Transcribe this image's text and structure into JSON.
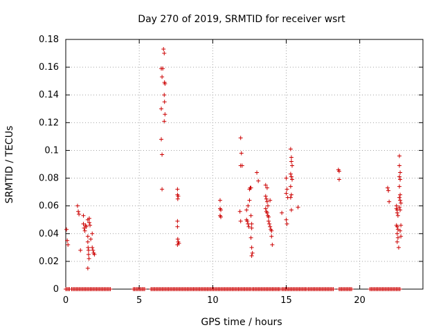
{
  "chart_data": {
    "type": "scatter",
    "title": "Day 270 of 2019, SRMTID for receiver wsrt",
    "xlabel": "GPS time / hours",
    "ylabel": "SRMTID / TECUs",
    "xlim": [
      0,
      24.3
    ],
    "ylim": [
      0,
      0.18
    ],
    "xticks": [
      0,
      5,
      10,
      15,
      20
    ],
    "xtick_labels": [
      "0",
      "5",
      "10",
      "15",
      "20"
    ],
    "yticks": [
      0,
      0.02,
      0.04,
      0.06,
      0.08,
      0.1,
      0.12,
      0.14,
      0.16,
      0.18
    ],
    "ytick_labels": [
      "0",
      "0.02",
      "0.04",
      "0.06",
      "0.08",
      "0.1",
      "0.12",
      "0.14",
      "0.16",
      "0.18"
    ],
    "grid": true,
    "marker": "+",
    "color": "#cc0000",
    "series": [
      {
        "name": "SRMTID",
        "points": [
          [
            0.05,
            0.043
          ],
          [
            0.1,
            0.035
          ],
          [
            0.15,
            0.032
          ],
          [
            0.8,
            0.06
          ],
          [
            0.85,
            0.056
          ],
          [
            0.9,
            0.054
          ],
          [
            1.0,
            0.028
          ],
          [
            1.2,
            0.053
          ],
          [
            1.2,
            0.047
          ],
          [
            1.25,
            0.044
          ],
          [
            1.3,
            0.042
          ],
          [
            1.35,
            0.046
          ],
          [
            1.4,
            0.045
          ],
          [
            1.5,
            0.05
          ],
          [
            1.5,
            0.038
          ],
          [
            1.5,
            0.034
          ],
          [
            1.52,
            0.03
          ],
          [
            1.55,
            0.028
          ],
          [
            1.55,
            0.025
          ],
          [
            1.58,
            0.022
          ],
          [
            1.5,
            0.015
          ],
          [
            1.6,
            0.048
          ],
          [
            1.6,
            0.051
          ],
          [
            1.65,
            0.046
          ],
          [
            1.7,
            0.036
          ],
          [
            1.8,
            0.04
          ],
          [
            1.8,
            0.03
          ],
          [
            1.85,
            0.028
          ],
          [
            1.9,
            0.026
          ],
          [
            1.95,
            0.025
          ],
          [
            6.5,
            0.159
          ],
          [
            6.55,
            0.153
          ],
          [
            6.6,
            0.159
          ],
          [
            6.65,
            0.173
          ],
          [
            6.7,
            0.17
          ],
          [
            6.72,
            0.149
          ],
          [
            6.75,
            0.148
          ],
          [
            6.5,
            0.13
          ],
          [
            6.7,
            0.14
          ],
          [
            6.72,
            0.135
          ],
          [
            6.75,
            0.126
          ],
          [
            6.7,
            0.121
          ],
          [
            6.5,
            0.108
          ],
          [
            6.55,
            0.097
          ],
          [
            6.55,
            0.072
          ],
          [
            7.6,
            0.072
          ],
          [
            7.6,
            0.068
          ],
          [
            7.65,
            0.067
          ],
          [
            7.62,
            0.065
          ],
          [
            7.6,
            0.049
          ],
          [
            7.6,
            0.045
          ],
          [
            7.62,
            0.036
          ],
          [
            7.65,
            0.034
          ],
          [
            7.7,
            0.033
          ],
          [
            7.6,
            0.032
          ],
          [
            10.5,
            0.064
          ],
          [
            10.5,
            0.058
          ],
          [
            10.55,
            0.057
          ],
          [
            10.5,
            0.053
          ],
          [
            10.55,
            0.052
          ],
          [
            11.9,
            0.109
          ],
          [
            11.95,
            0.098
          ],
          [
            11.9,
            0.089
          ],
          [
            12.0,
            0.089
          ],
          [
            11.85,
            0.056
          ],
          [
            11.9,
            0.049
          ],
          [
            12.3,
            0.057
          ],
          [
            12.4,
            0.06
          ],
          [
            12.3,
            0.05
          ],
          [
            12.35,
            0.049
          ],
          [
            12.4,
            0.047
          ],
          [
            12.45,
            0.045
          ],
          [
            12.5,
            0.072
          ],
          [
            12.55,
            0.073
          ],
          [
            12.6,
            0.073
          ],
          [
            12.5,
            0.064
          ],
          [
            12.6,
            0.053
          ],
          [
            12.65,
            0.047
          ],
          [
            12.65,
            0.044
          ],
          [
            12.6,
            0.037
          ],
          [
            12.65,
            0.03
          ],
          [
            12.7,
            0.026
          ],
          [
            12.65,
            0.024
          ],
          [
            13.0,
            0.084
          ],
          [
            13.1,
            0.078
          ],
          [
            13.6,
            0.075
          ],
          [
            13.7,
            0.073
          ],
          [
            13.6,
            0.067
          ],
          [
            13.65,
            0.065
          ],
          [
            13.7,
            0.063
          ],
          [
            13.75,
            0.06
          ],
          [
            13.6,
            0.058
          ],
          [
            13.65,
            0.056
          ],
          [
            13.7,
            0.055
          ],
          [
            13.75,
            0.053
          ],
          [
            13.8,
            0.052
          ],
          [
            13.8,
            0.049
          ],
          [
            13.85,
            0.047
          ],
          [
            13.9,
            0.045
          ],
          [
            13.95,
            0.043
          ],
          [
            14.0,
            0.042
          ],
          [
            13.9,
            0.064
          ],
          [
            14.0,
            0.038
          ],
          [
            14.05,
            0.032
          ],
          [
            14.7,
            0.055
          ],
          [
            15.0,
            0.08
          ],
          [
            15.05,
            0.072
          ],
          [
            15.0,
            0.069
          ],
          [
            15.1,
            0.066
          ],
          [
            15.0,
            0.05
          ],
          [
            15.05,
            0.047
          ],
          [
            15.3,
            0.101
          ],
          [
            15.35,
            0.095
          ],
          [
            15.35,
            0.092
          ],
          [
            15.4,
            0.089
          ],
          [
            15.3,
            0.083
          ],
          [
            15.35,
            0.081
          ],
          [
            15.4,
            0.079
          ],
          [
            15.3,
            0.074
          ],
          [
            15.35,
            0.068
          ],
          [
            15.3,
            0.066
          ],
          [
            15.35,
            0.057
          ],
          [
            15.8,
            0.059
          ],
          [
            18.55,
            0.086
          ],
          [
            18.6,
            0.085
          ],
          [
            18.6,
            0.079
          ],
          [
            21.9,
            0.073
          ],
          [
            21.95,
            0.071
          ],
          [
            22.0,
            0.063
          ],
          [
            22.5,
            0.06
          ],
          [
            22.5,
            0.058
          ],
          [
            22.55,
            0.057
          ],
          [
            22.55,
            0.055
          ],
          [
            22.6,
            0.053
          ],
          [
            22.5,
            0.046
          ],
          [
            22.55,
            0.045
          ],
          [
            22.6,
            0.043
          ],
          [
            22.55,
            0.04
          ],
          [
            22.6,
            0.037
          ],
          [
            22.55,
            0.034
          ],
          [
            22.65,
            0.03
          ],
          [
            22.7,
            0.096
          ],
          [
            22.7,
            0.089
          ],
          [
            22.75,
            0.084
          ],
          [
            22.7,
            0.081
          ],
          [
            22.75,
            0.079
          ],
          [
            22.7,
            0.074
          ],
          [
            22.75,
            0.068
          ],
          [
            22.7,
            0.066
          ],
          [
            22.75,
            0.064
          ],
          [
            22.8,
            0.062
          ],
          [
            22.7,
            0.059
          ],
          [
            22.75,
            0.057
          ],
          [
            22.8,
            0.046
          ],
          [
            22.75,
            0.042
          ],
          [
            22.8,
            0.038
          ]
        ],
        "zero_segments": [
          [
            0.0,
            0.3
          ],
          [
            0.4,
            3.1
          ],
          [
            4.6,
            5.4
          ],
          [
            5.8,
            12.6
          ],
          [
            12.7,
            14.6
          ],
          [
            14.7,
            16.4
          ],
          [
            16.5,
            18.2
          ],
          [
            18.6,
            19.5
          ],
          [
            20.7,
            22.8
          ]
        ]
      }
    ]
  }
}
